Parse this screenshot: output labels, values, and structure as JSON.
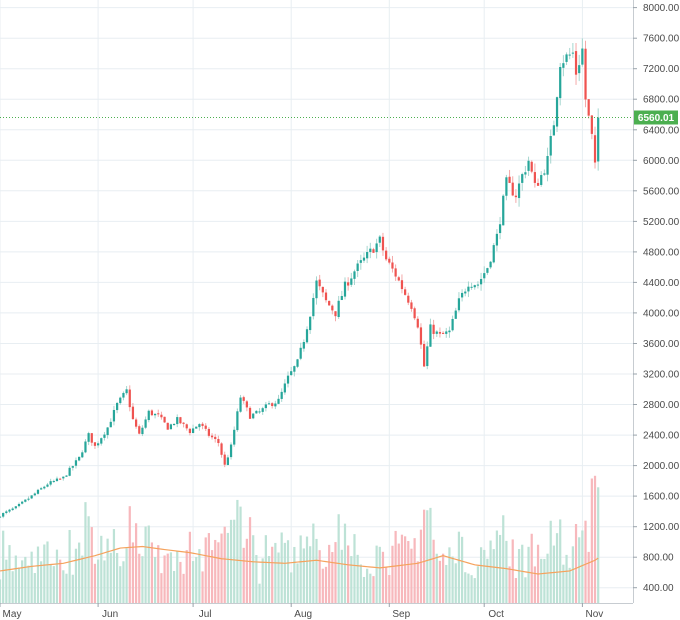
{
  "chart_data": {
    "type": "candlestick",
    "y_axis": {
      "position": "right",
      "range": [
        200,
        8100
      ],
      "ticks": [
        "400.00",
        "800.00",
        "1200.00",
        "1600.00",
        "2000.00",
        "2400.00",
        "2800.00",
        "3200.00",
        "3600.00",
        "4000.00",
        "4400.00",
        "4800.00",
        "5200.00",
        "5600.00",
        "6000.00",
        "6400.00",
        "6800.00",
        "7200.00",
        "7600.00",
        "8000.00"
      ]
    },
    "x_axis": {
      "labels": [
        {
          "text": "May",
          "day": 0
        },
        {
          "text": "Jun",
          "day": 31
        },
        {
          "text": "Jul",
          "day": 61
        },
        {
          "text": "Aug",
          "day": 92
        },
        {
          "text": "Sep",
          "day": 123
        },
        {
          "text": "Oct",
          "day": 153
        },
        {
          "text": "Nov",
          "day": 184
        }
      ],
      "day_range": [
        0,
        200
      ]
    },
    "current_price": {
      "value": 6560,
      "label": "6560.01"
    },
    "grid": true,
    "colors": {
      "up": "#26a69a",
      "down": "#ef5350",
      "up_wick": "#a5d6cf",
      "down_wick": "#f4a9a8",
      "vol_up": "#bde2d6",
      "vol_down": "#f7b8bc",
      "ma_line": "#f5a25d",
      "price_line": "#4caf50",
      "grid": "#e8eef2"
    },
    "volume_scale": 0.7,
    "volume_ma_anchors": [
      [
        0,
        620
      ],
      [
        10,
        680
      ],
      [
        20,
        720
      ],
      [
        30,
        820
      ],
      [
        38,
        920
      ],
      [
        45,
        940
      ],
      [
        52,
        900
      ],
      [
        60,
        860
      ],
      [
        70,
        780
      ],
      [
        80,
        740
      ],
      [
        90,
        720
      ],
      [
        100,
        760
      ],
      [
        110,
        700
      ],
      [
        120,
        660
      ],
      [
        132,
        720
      ],
      [
        140,
        820
      ],
      [
        150,
        700
      ],
      [
        160,
        650
      ],
      [
        170,
        580
      ],
      [
        180,
        620
      ],
      [
        188,
        760
      ],
      [
        196,
        980
      ]
    ],
    "price_anchors": [
      [
        0,
        1350
      ],
      [
        5,
        1450
      ],
      [
        10,
        1600
      ],
      [
        15,
        1760
      ],
      [
        20,
        1840
      ],
      [
        25,
        2100
      ],
      [
        28,
        2400
      ],
      [
        30,
        2250
      ],
      [
        34,
        2500
      ],
      [
        37,
        2800
      ],
      [
        40,
        2980
      ],
      [
        42,
        2600
      ],
      [
        44,
        2400
      ],
      [
        47,
        2700
      ],
      [
        50,
        2650
      ],
      [
        53,
        2500
      ],
      [
        56,
        2600
      ],
      [
        60,
        2450
      ],
      [
        63,
        2550
      ],
      [
        66,
        2400
      ],
      [
        69,
        2300
      ],
      [
        71,
        2000
      ],
      [
        73,
        2250
      ],
      [
        76,
        2900
      ],
      [
        79,
        2650
      ],
      [
        82,
        2700
      ],
      [
        85,
        2800
      ],
      [
        88,
        2850
      ],
      [
        91,
        3150
      ],
      [
        94,
        3350
      ],
      [
        96,
        3650
      ],
      [
        98,
        4000
      ],
      [
        100,
        4400
      ],
      [
        103,
        4150
      ],
      [
        106,
        4000
      ],
      [
        109,
        4350
      ],
      [
        112,
        4550
      ],
      [
        115,
        4700
      ],
      [
        118,
        4850
      ],
      [
        120,
        4950
      ],
      [
        122,
        4700
      ],
      [
        125,
        4500
      ],
      [
        128,
        4250
      ],
      [
        130,
        4100
      ],
      [
        132,
        3850
      ],
      [
        134,
        3300
      ],
      [
        136,
        3800
      ],
      [
        139,
        3700
      ],
      [
        142,
        3750
      ],
      [
        145,
        4150
      ],
      [
        148,
        4400
      ],
      [
        151,
        4380
      ],
      [
        154,
        4600
      ],
      [
        157,
        5000
      ],
      [
        160,
        5700
      ],
      [
        163,
        5550
      ],
      [
        165,
        5800
      ],
      [
        167,
        6000
      ],
      [
        169,
        5650
      ],
      [
        171,
        5800
      ],
      [
        173,
        6000
      ],
      [
        175,
        6500
      ],
      [
        177,
        7300
      ],
      [
        179,
        7350
      ],
      [
        181,
        7400
      ],
      [
        182,
        7150
      ],
      [
        184,
        7450
      ],
      [
        185,
        6800
      ],
      [
        187,
        6300
      ],
      [
        188,
        5900
      ],
      [
        189,
        6560
      ]
    ]
  }
}
